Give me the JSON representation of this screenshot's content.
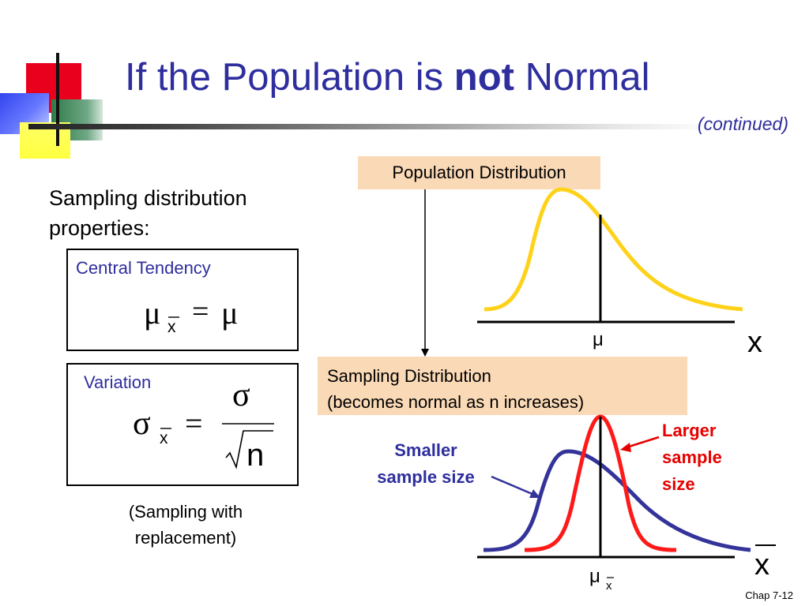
{
  "slide": {
    "title_prefix": "If the Population is ",
    "title_bold": "not",
    "title_suffix": " Normal",
    "continued": "(continued)",
    "footer": "Chap 7-12"
  },
  "left": {
    "properties_line1": "Sampling distribution",
    "properties_line2": "properties:",
    "central_label": "Central Tendency",
    "variation_label": "Variation",
    "footnote_line1": "(Sampling with",
    "footnote_line2": "replacement)"
  },
  "formulas": {
    "mu": "μ",
    "sigma": "σ",
    "xbar": "x",
    "equals": "=",
    "n": "n"
  },
  "right": {
    "population_label": "Population Distribution",
    "sampling_label_line1": "Sampling Distribution",
    "sampling_label_line2": "(becomes normal as n increases)",
    "smaller_line1": "Smaller",
    "smaller_line2": "sample size",
    "larger_line1": "Larger",
    "larger_line2": "sample",
    "larger_line3": "size",
    "pop_axis_var": "x",
    "pop_mu": "μ",
    "samp_axis_var": "x",
    "samp_mu": "μ",
    "samp_mu_sub": "x"
  },
  "colors": {
    "title": "#2e2e9e",
    "population_curve": "#ffd21a",
    "small_sample_curve": "#33339a",
    "large_sample_curve": "#ff1a1a",
    "smaller_label": "#2e2e9e",
    "larger_label": "#e60000",
    "callout_fill": "#fad9b6"
  }
}
